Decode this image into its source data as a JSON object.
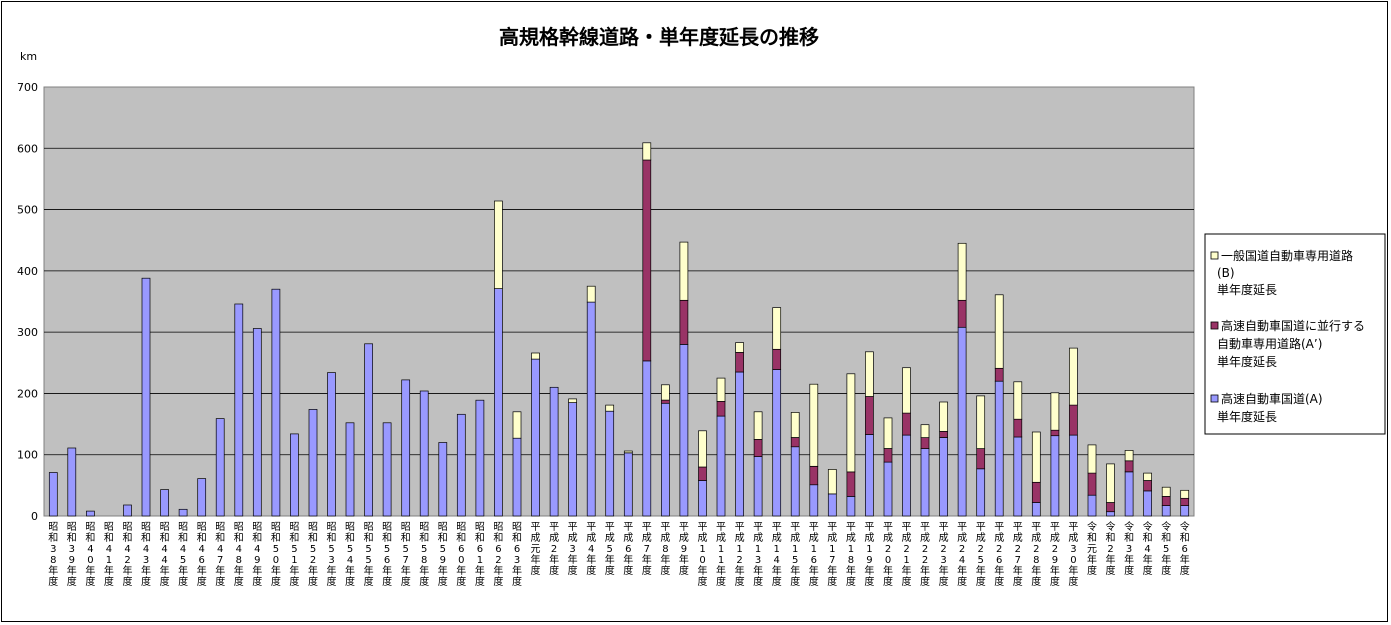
{
  "chart_data": {
    "type": "bar",
    "stacked": true,
    "title": "高規格幹線道路・単年度延長の推移",
    "unit_label": "km",
    "ylim": [
      0,
      700
    ],
    "yticks": [
      0,
      100,
      200,
      300,
      400,
      500,
      600,
      700
    ],
    "grid": true,
    "legend_position": "right",
    "colors": {
      "plot_bg": "#c0c0c0",
      "A": "#9999ff",
      "A_prime": "#993366",
      "B": "#ffffcc"
    },
    "categories": [
      "昭和38年度",
      "昭和39年度",
      "昭和40年度",
      "昭和41年度",
      "昭和42年度",
      "昭和43年度",
      "昭和44年度",
      "昭和45年度",
      "昭和46年度",
      "昭和47年度",
      "昭和48年度",
      "昭和49年度",
      "昭和50年度",
      "昭和51年度",
      "昭和52年度",
      "昭和53年度",
      "昭和54年度",
      "昭和55年度",
      "昭和56年度",
      "昭和57年度",
      "昭和58年度",
      "昭和59年度",
      "昭和60年度",
      "昭和61年度",
      "昭和62年度",
      "昭和63年度",
      "平成元年度",
      "平成2年度",
      "平成3年度",
      "平成4年度",
      "平成5年度",
      "平成6年度",
      "平成7年度",
      "平成8年度",
      "平成9年度",
      "平成10年度",
      "平成11年度",
      "平成12年度",
      "平成13年度",
      "平成14年度",
      "平成15年度",
      "平成16年度",
      "平成17年度",
      "平成18年度",
      "平成19年度",
      "平成20年度",
      "平成21年度",
      "平成22年度",
      "平成23年度",
      "平成24年度",
      "平成25年度",
      "平成26年度",
      "平成27年度",
      "平成28年度",
      "平成29年度",
      "平成30年度",
      "令和元年度",
      "令和2年度",
      "令和3年度",
      "令和4年度",
      "令和5年度",
      "令和6年度"
    ],
    "series": [
      {
        "name": "高速自動車国道(A)単年度延長",
        "color_key": "A",
        "values": [
          71,
          111,
          8,
          0,
          18,
          388,
          43,
          11,
          61,
          159,
          346,
          306,
          370,
          134,
          174,
          234,
          152,
          281,
          152,
          222,
          204,
          120,
          166,
          189,
          371,
          127,
          256,
          210,
          185,
          349,
          171,
          103,
          253,
          184,
          280,
          58,
          163,
          235,
          97,
          239,
          113,
          51,
          36,
          32,
          133,
          88,
          132,
          110,
          128,
          308,
          77,
          220,
          129,
          22,
          131,
          132,
          34,
          7,
          72,
          41,
          17,
          17
        ]
      },
      {
        "name": "高速自動車国道に並行する自動車専用道路(A')単年度延長",
        "color_key": "A_prime",
        "values": [
          0,
          0,
          0,
          0,
          0,
          0,
          0,
          0,
          0,
          0,
          0,
          0,
          0,
          0,
          0,
          0,
          0,
          0,
          0,
          0,
          0,
          0,
          0,
          0,
          0,
          0,
          0,
          0,
          0,
          0,
          0,
          0,
          328,
          5,
          72,
          22,
          24,
          32,
          28,
          33,
          15,
          30,
          0,
          40,
          62,
          22,
          36,
          18,
          10,
          44,
          33,
          21,
          29,
          33,
          9,
          49,
          36,
          15,
          18,
          17,
          15,
          12
        ]
      },
      {
        "name": "一般国道自動車専用道路(B)単年度延長",
        "color_key": "B",
        "values": [
          0,
          0,
          0,
          0,
          0,
          0,
          0,
          0,
          0,
          0,
          0,
          0,
          0,
          0,
          0,
          0,
          0,
          0,
          0,
          0,
          0,
          0,
          0,
          0,
          143,
          43,
          10,
          0,
          6,
          26,
          10,
          3,
          28,
          25,
          95,
          59,
          38,
          16,
          45,
          68,
          41,
          134,
          40,
          160,
          73,
          50,
          74,
          21,
          48,
          93,
          86,
          120,
          61,
          82,
          61,
          93,
          46,
          63,
          17,
          12,
          15,
          13
        ]
      }
    ]
  },
  "legend": {
    "b_line1": "一般国道自動車専用道路",
    "b_line2": "(B)",
    "b_line3": "単年度延長",
    "ap_line1": "高速自動車国道に並行する",
    "ap_line2": "自動車専用道路(A’)",
    "ap_line3": "単年度延長",
    "a_line1": "高速自動車国道(A)",
    "a_line2": "単年度延長"
  }
}
